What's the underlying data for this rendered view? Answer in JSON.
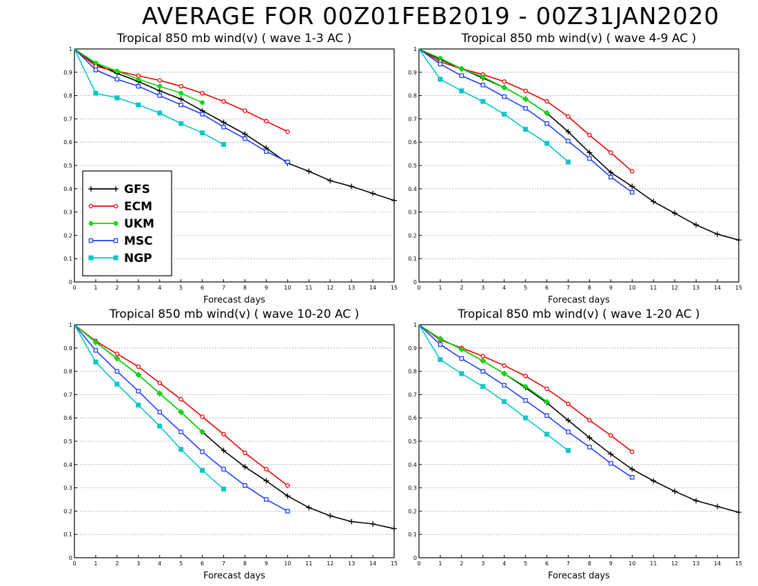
{
  "figure": {
    "title": "AVERAGE FOR 00Z01FEB2019 - 00Z31JAN2020"
  },
  "legend": {
    "placement": "inside lower-left of first panel",
    "entries": [
      {
        "name": "GFS",
        "color": "#000000",
        "marker": "plus"
      },
      {
        "name": "ECM",
        "color": "#e60000",
        "marker": "open-circle"
      },
      {
        "name": "UKM",
        "color": "#00dc00",
        "marker": "filled-circle"
      },
      {
        "name": "MSC",
        "color": "#1e3cff",
        "marker": "open-square"
      },
      {
        "name": "NGP",
        "color": "#00c8c8",
        "marker": "filled-square"
      }
    ]
  },
  "chart_data": [
    {
      "type": "line",
      "title": "Tropical 850 mb wind(v) ( wave 1-3 AC )",
      "xlabel": "Forecast days",
      "ylabel": "",
      "xlim": [
        0,
        15
      ],
      "ylim": [
        0,
        1
      ],
      "x_ticks": [
        "0",
        "1",
        "2",
        "3",
        "4",
        "5",
        "6",
        "7",
        "8",
        "9",
        "10",
        "11",
        "12",
        "13",
        "14",
        "15"
      ],
      "y_ticks": [
        "0",
        "0.1",
        "0.2",
        "0.3",
        "0.4",
        "0.5",
        "0.6",
        "0.7",
        "0.8",
        "0.9",
        "1"
      ],
      "grid": "horizontal dotted",
      "series": [
        {
          "name": "GFS",
          "x": [
            0,
            1,
            2,
            3,
            4,
            5,
            6,
            7,
            8,
            9,
            10,
            11,
            12,
            13,
            14,
            15
          ],
          "values": [
            1,
            0.935,
            0.895,
            0.86,
            0.82,
            0.785,
            0.735,
            0.685,
            0.635,
            0.575,
            0.51,
            0.475,
            0.435,
            0.41,
            0.38,
            0.35
          ]
        },
        {
          "name": "ECM",
          "x": [
            0,
            1,
            2,
            3,
            4,
            5,
            6,
            7,
            8,
            9,
            10
          ],
          "values": [
            1,
            0.925,
            0.905,
            0.885,
            0.865,
            0.84,
            0.81,
            0.775,
            0.735,
            0.69,
            0.645
          ]
        },
        {
          "name": "UKM",
          "x": [
            0,
            1,
            2,
            3,
            4,
            5,
            6
          ],
          "values": [
            1,
            0.94,
            0.905,
            0.87,
            0.84,
            0.81,
            0.77
          ]
        },
        {
          "name": "MSC",
          "x": [
            0,
            1,
            2,
            3,
            4,
            5,
            6,
            7,
            8,
            9,
            10
          ],
          "values": [
            1,
            0.91,
            0.87,
            0.84,
            0.8,
            0.76,
            0.72,
            0.665,
            0.615,
            0.56,
            0.515
          ]
        },
        {
          "name": "NGP",
          "x": [
            0,
            1,
            2,
            3,
            4,
            5,
            6,
            7
          ],
          "values": [
            1,
            0.81,
            0.79,
            0.76,
            0.725,
            0.68,
            0.64,
            0.59
          ]
        }
      ]
    },
    {
      "type": "line",
      "title": "Tropical 850 mb wind(v) ( wave 4-9 AC )",
      "xlabel": "Forecast days",
      "ylabel": "",
      "xlim": [
        0,
        15
      ],
      "ylim": [
        0,
        1
      ],
      "x_ticks": [
        "0",
        "1",
        "2",
        "3",
        "4",
        "5",
        "6",
        "7",
        "8",
        "9",
        "10",
        "11",
        "12",
        "13",
        "14",
        "15"
      ],
      "y_ticks": [
        "0",
        "0.1",
        "0.2",
        "0.3",
        "0.4",
        "0.5",
        "0.6",
        "0.7",
        "0.8",
        "0.9",
        "1"
      ],
      "grid": "horizontal dotted",
      "series": [
        {
          "name": "GFS",
          "x": [
            0,
            1,
            2,
            3,
            4,
            5,
            6,
            7,
            8,
            9,
            10,
            11,
            12,
            13,
            14,
            15
          ],
          "values": [
            1,
            0.955,
            0.915,
            0.875,
            0.835,
            0.785,
            0.725,
            0.645,
            0.555,
            0.47,
            0.41,
            0.345,
            0.295,
            0.245,
            0.205,
            0.18
          ]
        },
        {
          "name": "ECM",
          "x": [
            0,
            1,
            2,
            3,
            4,
            5,
            6,
            7,
            8,
            9,
            10
          ],
          "values": [
            1,
            0.945,
            0.915,
            0.89,
            0.86,
            0.82,
            0.775,
            0.71,
            0.63,
            0.555,
            0.475
          ]
        },
        {
          "name": "UKM",
          "x": [
            0,
            1,
            2,
            3,
            4,
            5,
            6
          ],
          "values": [
            1,
            0.96,
            0.915,
            0.88,
            0.835,
            0.785,
            0.725
          ]
        },
        {
          "name": "MSC",
          "x": [
            0,
            1,
            2,
            3,
            4,
            5,
            6,
            7,
            8,
            9,
            10
          ],
          "values": [
            1,
            0.935,
            0.885,
            0.845,
            0.795,
            0.745,
            0.68,
            0.605,
            0.53,
            0.45,
            0.385
          ]
        },
        {
          "name": "NGP",
          "x": [
            0,
            1,
            2,
            3,
            4,
            5,
            6,
            7
          ],
          "values": [
            1,
            0.87,
            0.82,
            0.775,
            0.72,
            0.655,
            0.595,
            0.515
          ]
        }
      ]
    },
    {
      "type": "line",
      "title": "Tropical 850 mb wind(v) ( wave 10-20 AC )",
      "xlabel": "Forecast days",
      "ylabel": "",
      "xlim": [
        0,
        15
      ],
      "ylim": [
        0,
        1
      ],
      "x_ticks": [
        "0",
        "1",
        "2",
        "3",
        "4",
        "5",
        "6",
        "7",
        "8",
        "9",
        "10",
        "11",
        "12",
        "13",
        "14",
        "15"
      ],
      "y_ticks": [
        "0",
        "0.1",
        "0.2",
        "0.3",
        "0.4",
        "0.5",
        "0.6",
        "0.7",
        "0.8",
        "0.9",
        "1"
      ],
      "grid": "horizontal dotted",
      "series": [
        {
          "name": "GFS",
          "x": [
            0,
            1,
            2,
            3,
            4,
            5,
            6,
            7,
            8,
            9,
            10,
            11,
            12,
            13,
            14,
            15
          ],
          "values": [
            1,
            0.925,
            0.855,
            0.785,
            0.705,
            0.625,
            0.54,
            0.46,
            0.39,
            0.33,
            0.265,
            0.215,
            0.18,
            0.155,
            0.145,
            0.125
          ]
        },
        {
          "name": "ECM",
          "x": [
            0,
            1,
            2,
            3,
            4,
            5,
            6,
            7,
            8,
            9,
            10
          ],
          "values": [
            1,
            0.93,
            0.875,
            0.82,
            0.75,
            0.68,
            0.605,
            0.53,
            0.45,
            0.38,
            0.31
          ]
        },
        {
          "name": "UKM",
          "x": [
            0,
            1,
            2,
            3,
            4,
            5,
            6
          ],
          "values": [
            1,
            0.925,
            0.855,
            0.785,
            0.705,
            0.625,
            0.54
          ]
        },
        {
          "name": "MSC",
          "x": [
            0,
            1,
            2,
            3,
            4,
            5,
            6,
            7,
            8,
            9,
            10
          ],
          "values": [
            1,
            0.89,
            0.8,
            0.715,
            0.625,
            0.54,
            0.455,
            0.38,
            0.31,
            0.25,
            0.2
          ]
        },
        {
          "name": "NGP",
          "x": [
            0,
            1,
            2,
            3,
            4,
            5,
            6,
            7
          ],
          "values": [
            1,
            0.84,
            0.745,
            0.655,
            0.565,
            0.465,
            0.375,
            0.295
          ]
        }
      ]
    },
    {
      "type": "line",
      "title": "Tropical 850 mb wind(v) ( wave 1-20 AC )",
      "xlabel": "Forecast days",
      "ylabel": "",
      "xlim": [
        0,
        15
      ],
      "ylim": [
        0,
        1
      ],
      "x_ticks": [
        "0",
        "1",
        "2",
        "3",
        "4",
        "5",
        "6",
        "7",
        "8",
        "9",
        "10",
        "11",
        "12",
        "13",
        "14",
        "15"
      ],
      "y_ticks": [
        "0",
        "0.1",
        "0.2",
        "0.3",
        "0.4",
        "0.5",
        "0.6",
        "0.7",
        "0.8",
        "0.9",
        "1"
      ],
      "grid": "horizontal dotted",
      "series": [
        {
          "name": "GFS",
          "x": [
            0,
            1,
            2,
            3,
            4,
            5,
            6,
            7,
            8,
            9,
            10,
            11,
            12,
            13,
            14,
            15
          ],
          "values": [
            1,
            0.94,
            0.895,
            0.845,
            0.79,
            0.73,
            0.665,
            0.59,
            0.515,
            0.445,
            0.38,
            0.33,
            0.285,
            0.245,
            0.22,
            0.195
          ]
        },
        {
          "name": "ECM",
          "x": [
            0,
            1,
            2,
            3,
            4,
            5,
            6,
            7,
            8,
            9,
            10
          ],
          "values": [
            1,
            0.935,
            0.9,
            0.865,
            0.825,
            0.78,
            0.725,
            0.66,
            0.59,
            0.525,
            0.455
          ]
        },
        {
          "name": "UKM",
          "x": [
            0,
            1,
            2,
            3,
            4,
            5,
            6
          ],
          "values": [
            1,
            0.94,
            0.895,
            0.845,
            0.79,
            0.735,
            0.67
          ]
        },
        {
          "name": "MSC",
          "x": [
            0,
            1,
            2,
            3,
            4,
            5,
            6,
            7,
            8,
            9,
            10
          ],
          "values": [
            1,
            0.915,
            0.855,
            0.8,
            0.74,
            0.675,
            0.61,
            0.54,
            0.475,
            0.405,
            0.345
          ]
        },
        {
          "name": "NGP",
          "x": [
            0,
            1,
            2,
            3,
            4,
            5,
            6,
            7
          ],
          "values": [
            1,
            0.85,
            0.79,
            0.735,
            0.67,
            0.6,
            0.53,
            0.46
          ]
        }
      ]
    }
  ]
}
